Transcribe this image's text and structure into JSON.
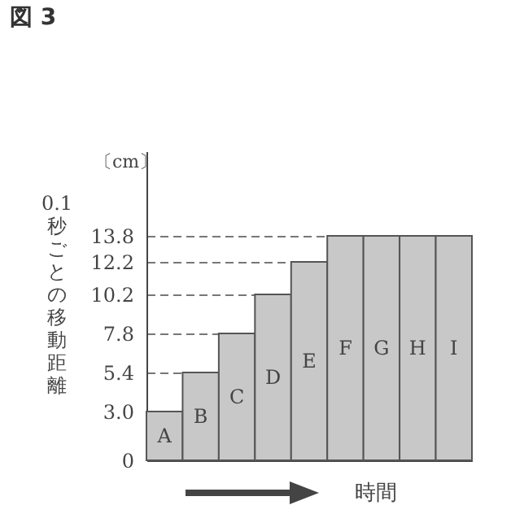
{
  "chart_data": {
    "type": "bar",
    "title": "図 3",
    "xlabel": "時間",
    "ylabel": "0.1 秒ごとの移動距離",
    "annotations": [
      "〔cm〕"
    ],
    "categories": [
      "A",
      "B",
      "C",
      "D",
      "E",
      "F",
      "G",
      "H",
      "I"
    ],
    "values": [
      3.0,
      5.4,
      7.8,
      10.2,
      12.2,
      13.8,
      13.8,
      13.8,
      13.8
    ],
    "color": "#c8c8c8",
    "ylim": [
      0,
      19
    ],
    "yticks": [
      0,
      {
        "value": 3,
        "label": "3.0"
      },
      {
        "value": 5.4,
        "label": "5.4"
      },
      {
        "value": 7.8,
        "label": "7.8"
      },
      {
        "value": 10.2,
        "label": "10.2"
      },
      {
        "value": 12.2,
        "label": "12.2"
      },
      {
        "value": 13.8,
        "label": "13.8"
      }
    ],
    "grid": "y",
    "tick_labels": "y"
  }
}
